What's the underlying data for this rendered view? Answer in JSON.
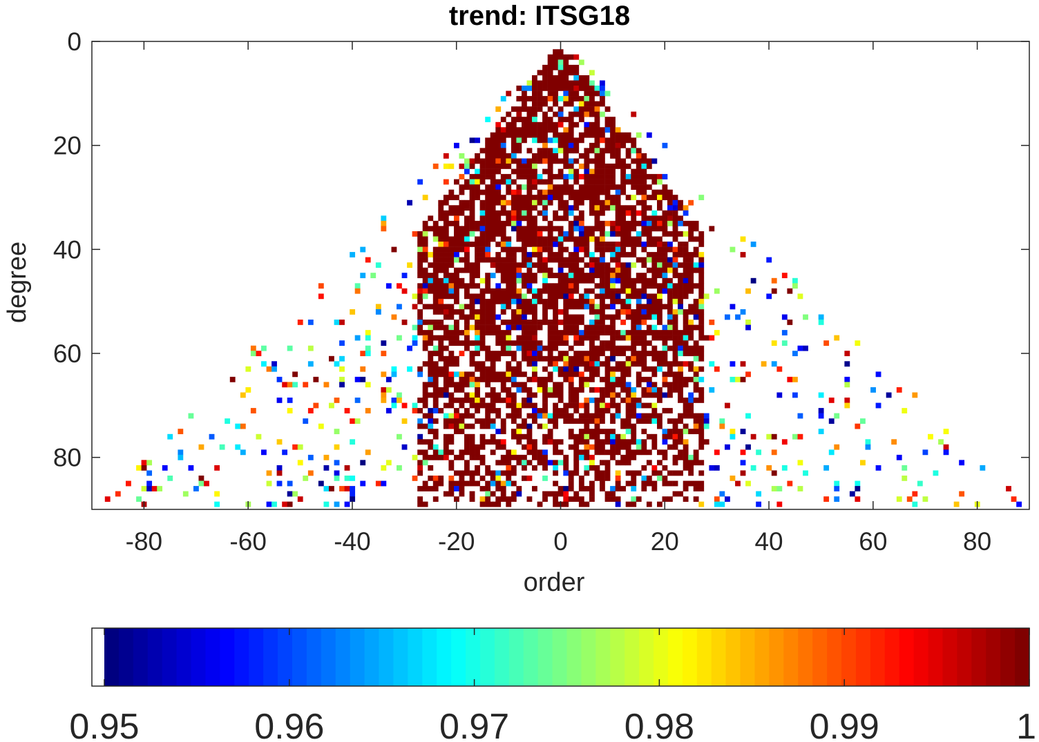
{
  "chart_data": {
    "type": "heatmap",
    "title": "trend: ITSG18",
    "xlabel": "order",
    "ylabel": "degree",
    "xlim": [
      -90,
      90
    ],
    "ylim": [
      0,
      90
    ],
    "y_reversed": true,
    "xticks": [
      -80,
      -60,
      -40,
      -20,
      0,
      20,
      40,
      60,
      80
    ],
    "yticks": [
      0,
      20,
      40,
      60,
      80
    ],
    "colormap": "jet",
    "clim": [
      0.95,
      1
    ],
    "below_clim_color": "#ffffff",
    "colorbar": {
      "location": "bottom",
      "ticks": [
        "0.95",
        "0.96",
        "0.97",
        "0.98",
        "0.99",
        "1"
      ]
    },
    "data_note_visible": "cells with degree n >= |order m|, n up to 90; mostly dark red (~1.0) for low degree and |m| < ~30, sparse colored cells elsewhere",
    "grid": false
  }
}
